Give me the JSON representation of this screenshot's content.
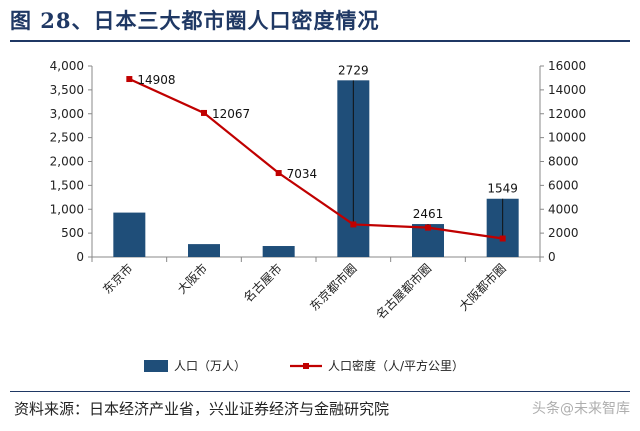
{
  "title": "图 28、日本三大都市圈人口密度情况",
  "source": "资料来源：日本经济产业省，兴业证券经济与金融研究院",
  "watermark": "头条@未来智库",
  "colors": {
    "bar": "#1f4e79",
    "line": "#c00000",
    "title": "#1f3864"
  },
  "chart_data": {
    "type": "bar",
    "categories": [
      "东京市",
      "大阪市",
      "名古屋市",
      "东京都市圈",
      "名古屋都市圈",
      "大阪都市圈"
    ],
    "series": [
      {
        "name": "人口（万人）",
        "type": "bar",
        "axis": "left",
        "values": [
          930,
          270,
          230,
          3700,
          690,
          1220
        ],
        "data_labels": [
          "",
          "",
          "",
          "2729",
          "2461",
          "1549"
        ]
      },
      {
        "name": "人口密度（人/平方公里）",
        "type": "line",
        "axis": "right",
        "values": [
          14908,
          12067,
          7034,
          2729,
          2461,
          1549
        ],
        "data_labels": [
          "14908",
          "12067",
          "7034",
          "",
          "",
          ""
        ]
      }
    ],
    "y_left": {
      "min": 0,
      "max": 4000,
      "step": 500,
      "ticks": [
        "0",
        "500",
        "1,000",
        "1,500",
        "2,000",
        "2,500",
        "3,000",
        "3,500",
        "4,000"
      ]
    },
    "y_right": {
      "min": 0,
      "max": 16000,
      "step": 2000,
      "ticks": [
        "0",
        "2000",
        "4000",
        "6000",
        "8000",
        "10000",
        "12000",
        "14000",
        "16000"
      ]
    },
    "legend_position": "bottom",
    "grid": false
  }
}
